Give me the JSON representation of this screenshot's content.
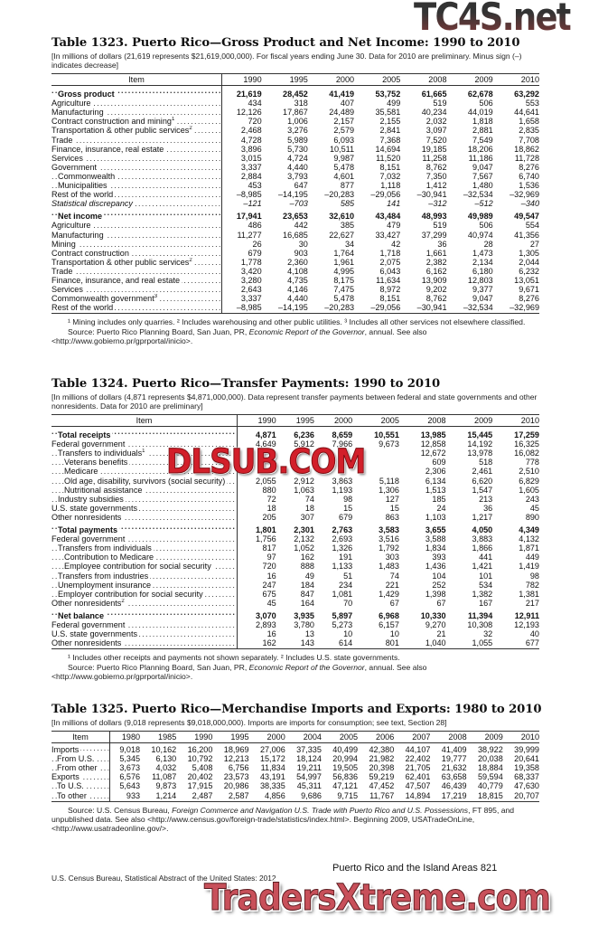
{
  "watermarks": {
    "top": "TC4S.net",
    "middle": "DLSUB.COM",
    "bottom": "TradersXtreme.com"
  },
  "tables": [
    {
      "title": "Table 1323. Puerto Rico—Gross Product and Net Income: 1990 to 2010",
      "subtitle": "[In millions of dollars (21,619 represents $21,619,000,000). For fiscal years ending June 30. Data for 2010 are preliminary. Minus sign (–) indicates decrease]",
      "columns": [
        "Item",
        "1990",
        "1995",
        "2000",
        "2005",
        "2008",
        "2009",
        "2010"
      ],
      "rows": [
        {
          "label": "Gross product",
          "style": "total",
          "indent": 1,
          "values": [
            "21,619",
            "28,452",
            "41,419",
            "53,752",
            "61,665",
            "62,678",
            "63,292"
          ]
        },
        {
          "label": "Agriculture",
          "indent": 0,
          "values": [
            "434",
            "318",
            "407",
            "499",
            "519",
            "506",
            "553"
          ]
        },
        {
          "label": "Manufacturing",
          "indent": 0,
          "values": [
            "12,126",
            "17,867",
            "24,489",
            "35,581",
            "40,234",
            "44,019",
            "44,641"
          ]
        },
        {
          "label": "Contract construction and mining",
          "note": "1",
          "indent": 0,
          "values": [
            "720",
            "1,006",
            "2,157",
            "2,155",
            "2,032",
            "1,818",
            "1,658"
          ]
        },
        {
          "label": "Transportation & other public services",
          "note": "2",
          "indent": 0,
          "values": [
            "2,468",
            "3,276",
            "2,579",
            "2,841",
            "3,097",
            "2,881",
            "2,835"
          ]
        },
        {
          "label": "Trade",
          "indent": 0,
          "values": [
            "4,728",
            "5,989",
            "6,093",
            "7,368",
            "7,520",
            "7,549",
            "7,708"
          ]
        },
        {
          "label": "Finance, insurance, real estate",
          "indent": 0,
          "values": [
            "3,896",
            "5,730",
            "10,511",
            "14,694",
            "19,185",
            "18,206",
            "18,862"
          ]
        },
        {
          "label": "Services",
          "indent": 0,
          "values": [
            "3,015",
            "4,724",
            "9,987",
            "11,520",
            "11,258",
            "11,186",
            "11,728"
          ]
        },
        {
          "label": "Government",
          "indent": 0,
          "values": [
            "3,337",
            "4,440",
            "5,478",
            "8,151",
            "8,762",
            "9,047",
            "8,276"
          ]
        },
        {
          "label": "Commonwealth",
          "indent": 1,
          "values": [
            "2,884",
            "3,793",
            "4,601",
            "7,032",
            "7,350",
            "7,567",
            "6,740"
          ]
        },
        {
          "label": "Municipalities",
          "indent": 1,
          "values": [
            "453",
            "647",
            "877",
            "1,118",
            "1,412",
            "1,480",
            "1,536"
          ]
        },
        {
          "label": "Rest of the world",
          "indent": 0,
          "values": [
            "–8,985",
            "–14,195",
            "–20,283",
            "–29,056",
            "–30,941",
            "–32,534",
            "–32,969"
          ]
        },
        {
          "label": "Statistical discrepancy",
          "style": "italic",
          "indent": 0,
          "values": [
            "–121",
            "–703",
            "585",
            "141",
            "–312",
            "–512",
            "–340"
          ]
        },
        {
          "label": "Net income",
          "style": "total",
          "indent": 1,
          "values": [
            "17,941",
            "23,653",
            "32,610",
            "43,484",
            "48,993",
            "49,989",
            "49,547"
          ]
        },
        {
          "label": "Agriculture",
          "indent": 0,
          "values": [
            "486",
            "442",
            "385",
            "479",
            "519",
            "506",
            "554"
          ]
        },
        {
          "label": "Manufacturing",
          "indent": 0,
          "values": [
            "11,277",
            "16,685",
            "22,627",
            "33,427",
            "37,299",
            "40,974",
            "41,356"
          ]
        },
        {
          "label": "Mining",
          "indent": 0,
          "values": [
            "26",
            "30",
            "34",
            "42",
            "36",
            "28",
            "27"
          ]
        },
        {
          "label": "Contract construction",
          "indent": 0,
          "values": [
            "679",
            "903",
            "1,764",
            "1,718",
            "1,661",
            "1,473",
            "1,305"
          ]
        },
        {
          "label": "Transportation & other public services",
          "note": "2",
          "indent": 0,
          "values": [
            "1,778",
            "2,360",
            "1,961",
            "2,075",
            "2,382",
            "2,134",
            "2,044"
          ]
        },
        {
          "label": "Trade",
          "indent": 0,
          "values": [
            "3,420",
            "4,108",
            "4,995",
            "6,043",
            "6,162",
            "6,180",
            "6,232"
          ]
        },
        {
          "label": "Finance, insurance, and real estate",
          "indent": 0,
          "values": [
            "3,280",
            "4,735",
            "8,175",
            "11,634",
            "13,909",
            "12,803",
            "13,051"
          ]
        },
        {
          "label": "Services",
          "indent": 0,
          "values": [
            "2,643",
            "4,146",
            "7,475",
            "8,972",
            "9,202",
            "9,377",
            "9,671"
          ]
        },
        {
          "label": "Commonwealth government",
          "note": "3",
          "indent": 0,
          "values": [
            "3,337",
            "4,440",
            "5,478",
            "8,151",
            "8,762",
            "9,047",
            "8,276"
          ]
        },
        {
          "label": "Rest of the world",
          "indent": 0,
          "values": [
            "–8,985",
            "–14,195",
            "–20,283",
            "–29,056",
            "–30,941",
            "–32,534",
            "–32,969"
          ]
        }
      ],
      "footnotes": "¹ Mining includes only quarries. ² Includes warehousing and other public utilities. ³ Includes all other services not elsewhere classified.",
      "source_prefix": "Source: Puerto Rico Planning Board, San Juan, PR, ",
      "source_title": "Economic Report of the Governor",
      "source_suffix": ", annual. See also",
      "source_url": "<http://www.gobierno.pr/gprportal/inicio>."
    },
    {
      "title": "Table 1324. Puerto Rico—Transfer Payments: 1990 to 2010",
      "subtitle": "[In millions of dollars (4,871 represents $4,871,000,000). Data represent transfer payments between federal and state governments and other nonresidents. Data for 2010 are preliminary]",
      "columns": [
        "Item",
        "1990",
        "1995",
        "2000",
        "2005",
        "2008",
        "2009",
        "2010"
      ],
      "rows": [
        {
          "label": "Total receipts",
          "style": "total",
          "indent": 1,
          "values": [
            "4,871",
            "6,236",
            "8,659",
            "10,551",
            "13,985",
            "15,445",
            "17,259"
          ]
        },
        {
          "label": "Federal government",
          "indent": 0,
          "values": [
            "4,649",
            "5,912",
            "7,966",
            "9,673",
            "12,858",
            "14,192",
            "16,325"
          ]
        },
        {
          "label": "Transfers to individuals",
          "note": "1",
          "indent": 1,
          "values": [
            "",
            "",
            "",
            "",
            "12,672",
            "13,978",
            "16,082"
          ]
        },
        {
          "label": "Veterans benefits",
          "indent": 2,
          "values": [
            "",
            "",
            "",
            "",
            "609",
            "518",
            "778"
          ]
        },
        {
          "label": "Medicare",
          "indent": 2,
          "values": [
            "",
            "",
            "",
            "",
            "2,306",
            "2,461",
            "2,510"
          ]
        },
        {
          "label": "Old age, disability, survivors (social security)",
          "indent": 2,
          "values": [
            "2,055",
            "2,912",
            "3,863",
            "5,118",
            "6,134",
            "6,620",
            "6,829"
          ]
        },
        {
          "label": "Nutritional assistance",
          "indent": 2,
          "values": [
            "880",
            "1,063",
            "1,193",
            "1,306",
            "1,513",
            "1,547",
            "1,605"
          ]
        },
        {
          "label": "Industry subsidies",
          "indent": 1,
          "values": [
            "72",
            "74",
            "98",
            "127",
            "185",
            "213",
            "243"
          ]
        },
        {
          "label": "U.S. state governments",
          "indent": 0,
          "values": [
            "18",
            "18",
            "15",
            "15",
            "24",
            "36",
            "45"
          ]
        },
        {
          "label": "Other nonresidents",
          "indent": 0,
          "values": [
            "205",
            "307",
            "679",
            "863",
            "1,103",
            "1,217",
            "890"
          ]
        },
        {
          "label": "Total payments",
          "style": "total",
          "indent": 1,
          "values": [
            "1,801",
            "2,301",
            "2,763",
            "3,583",
            "3,655",
            "4,050",
            "4,349"
          ]
        },
        {
          "label": "Federal government",
          "indent": 0,
          "values": [
            "1,756",
            "2,132",
            "2,693",
            "3,516",
            "3,588",
            "3,883",
            "4,132"
          ]
        },
        {
          "label": "Transfers from individuals",
          "indent": 1,
          "values": [
            "817",
            "1,052",
            "1,326",
            "1,792",
            "1,834",
            "1,866",
            "1,871"
          ]
        },
        {
          "label": "Contribution to Medicare",
          "indent": 2,
          "values": [
            "97",
            "162",
            "191",
            "303",
            "393",
            "441",
            "449"
          ]
        },
        {
          "label": "Employee contribution for social security",
          "indent": 2,
          "values": [
            "720",
            "888",
            "1,133",
            "1,483",
            "1,436",
            "1,421",
            "1,419"
          ]
        },
        {
          "label": "Transfers from industries",
          "indent": 1,
          "values": [
            "16",
            "49",
            "51",
            "74",
            "104",
            "101",
            "98"
          ]
        },
        {
          "label": "Unemployment insurance",
          "indent": 1,
          "values": [
            "247",
            "184",
            "234",
            "221",
            "252",
            "534",
            "782"
          ]
        },
        {
          "label": "Employer contribution for social security",
          "indent": 1,
          "values": [
            "675",
            "847",
            "1,081",
            "1,429",
            "1,398",
            "1,382",
            "1,381"
          ]
        },
        {
          "label": "Other nonresidents",
          "note": "2",
          "indent": 0,
          "values": [
            "45",
            "164",
            "70",
            "67",
            "67",
            "167",
            "217"
          ]
        },
        {
          "label": "Net balance",
          "style": "total",
          "indent": 1,
          "values": [
            "3,070",
            "3,935",
            "5,897",
            "6,968",
            "10,330",
            "11,394",
            "12,911"
          ]
        },
        {
          "label": "Federal government",
          "indent": 0,
          "values": [
            "2,893",
            "3,780",
            "5,273",
            "6,157",
            "9,270",
            "10,308",
            "12,193"
          ]
        },
        {
          "label": "U.S. state governments",
          "indent": 0,
          "values": [
            "16",
            "13",
            "10",
            "10",
            "21",
            "32",
            "40"
          ]
        },
        {
          "label": "Other nonresidents",
          "indent": 0,
          "values": [
            "162",
            "143",
            "614",
            "801",
            "1,040",
            "1,055",
            "677"
          ]
        }
      ],
      "footnotes": "¹ Includes other receipts and payments not shown separately. ² Includes U.S. state governments.",
      "source_prefix": "Source: Puerto Rico Planning Board, San Juan, PR, ",
      "source_title": "Economic Report of the Governor",
      "source_suffix": ", annual. See also",
      "source_url": "<http://www.gobierno.pr/gprportal/inicio>."
    },
    {
      "title": "Table 1325. Puerto Rico—Merchandise Imports and Exports: 1980 to 2010",
      "subtitle": "[In millions of dollars (9,018 represents $9,018,000,000). Imports are imports for consumption; see text, Section 28]",
      "columns": [
        "Item",
        "1980",
        "1985",
        "1990",
        "1995",
        "2000",
        "2004",
        "2005",
        "2006",
        "2007",
        "2008",
        "2009",
        "2010"
      ],
      "rows": [
        {
          "label": "Imports",
          "indent": 0,
          "values": [
            "9,018",
            "10,162",
            "16,200",
            "18,969",
            "27,006",
            "37,335",
            "40,499",
            "42,380",
            "44,107",
            "41,409",
            "38,922",
            "39,999"
          ]
        },
        {
          "label": "From U.S.",
          "indent": 1,
          "values": [
            "5,345",
            "6,130",
            "10,792",
            "12,213",
            "15,172",
            "18,124",
            "20,994",
            "21,982",
            "22,402",
            "19,777",
            "20,038",
            "20,641"
          ]
        },
        {
          "label": "From other",
          "indent": 1,
          "values": [
            "3,673",
            "4,032",
            "5,408",
            "6,756",
            "11,834",
            "19,211",
            "19,505",
            "20,398",
            "21,705",
            "21,632",
            "18,884",
            "19,358"
          ]
        },
        {
          "label": "Exports",
          "indent": 0,
          "values": [
            "6,576",
            "11,087",
            "20,402",
            "23,573",
            "43,191",
            "54,997",
            "56,836",
            "59,219",
            "62,401",
            "63,658",
            "59,594",
            "68,337"
          ]
        },
        {
          "label": "To U.S.",
          "indent": 1,
          "values": [
            "5,643",
            "9,873",
            "17,915",
            "20,986",
            "38,335",
            "45,311",
            "47,121",
            "47,452",
            "47,507",
            "46,439",
            "40,779",
            "47,630"
          ]
        },
        {
          "label": "To other",
          "indent": 1,
          "values": [
            "933",
            "1,214",
            "2,487",
            "2,587",
            "4,856",
            "9,686",
            "9,715",
            "11,767",
            "14,894",
            "17,219",
            "18,815",
            "20,707"
          ]
        }
      ],
      "footnotes": "",
      "source_prefix": "Source: U.S. Census Bureau, ",
      "source_title": "Foreign Commerce and Navigation U.S. Trade with Puerto Rico and U.S. Possessions",
      "source_suffix": ", FT 895, and unpublished data. See also <http://www.census.gov/foreign-trade/statistics/index.html>. Beginning 2009, USATradeOnLine,",
      "source_url": "<http://www.usatradeonline.gov/>."
    }
  ],
  "footer": {
    "left": "U.S. Census Bureau, Statistical Abstract of the United States: 2012",
    "right": "Puerto Rico and the Island Areas  821"
  }
}
